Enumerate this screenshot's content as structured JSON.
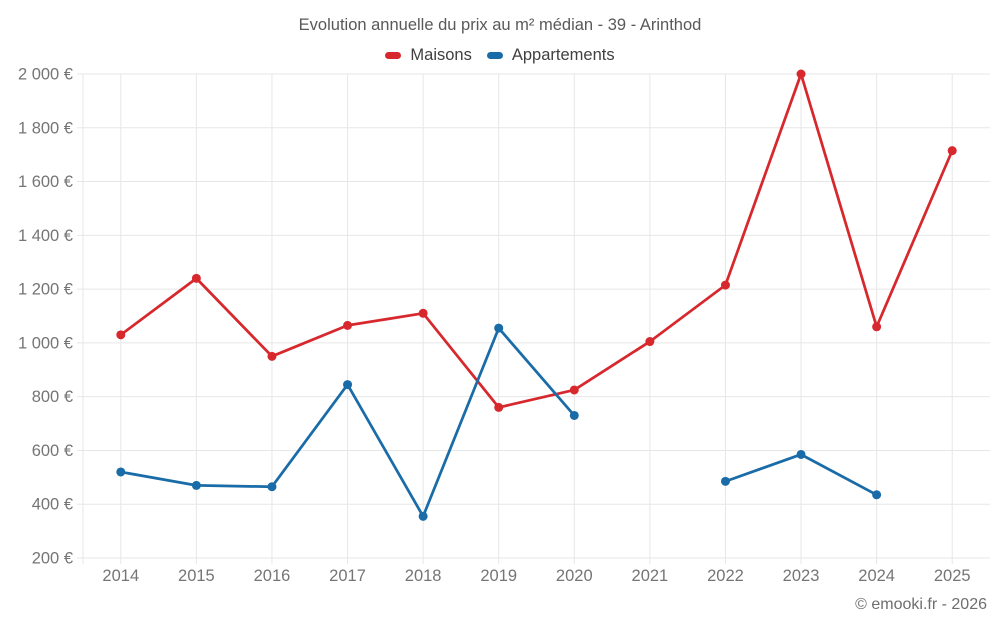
{
  "title": "Evolution annuelle du prix au m² médian - 39 - Arinthod",
  "watermark": "© emooki.fr - 2026",
  "colors": {
    "grid": "#e7e7e7",
    "axis_text": "#757575",
    "title_text": "#595959",
    "legend_text": "#404040",
    "watermark_text": "#6e6e6e",
    "maisons": "#d7282e",
    "appartements": "#1a6ca8"
  },
  "chart_data": {
    "type": "line",
    "title": "Evolution annuelle du prix au m² médian - 39 - Arinthod",
    "xlabel": "",
    "ylabel": "",
    "categories": [
      "2014",
      "2015",
      "2016",
      "2017",
      "2018",
      "2019",
      "2020",
      "2021",
      "2022",
      "2023",
      "2024",
      "2025"
    ],
    "series": [
      {
        "name": "Maisons",
        "color": "#d7282e",
        "values": [
          1030,
          1240,
          950,
          1065,
          1110,
          760,
          825,
          1005,
          1215,
          2000,
          1060,
          1715
        ]
      },
      {
        "name": "Appartements",
        "color": "#1a6ca8",
        "values": [
          520,
          470,
          465,
          845,
          355,
          1055,
          730,
          null,
          485,
          585,
          435,
          null
        ]
      }
    ],
    "ylim": [
      200,
      2000
    ],
    "ytick_step": 200,
    "ytick_labels": [
      "200 €",
      "400 €",
      "600 €",
      "800 €",
      "1 000 €",
      "1 200 €",
      "1 400 €",
      "1 600 €",
      "1 800 €",
      "2 000 €"
    ],
    "grid": true,
    "legend_position": "top",
    "marker_radius": 4.5,
    "line_width": 2.75
  }
}
